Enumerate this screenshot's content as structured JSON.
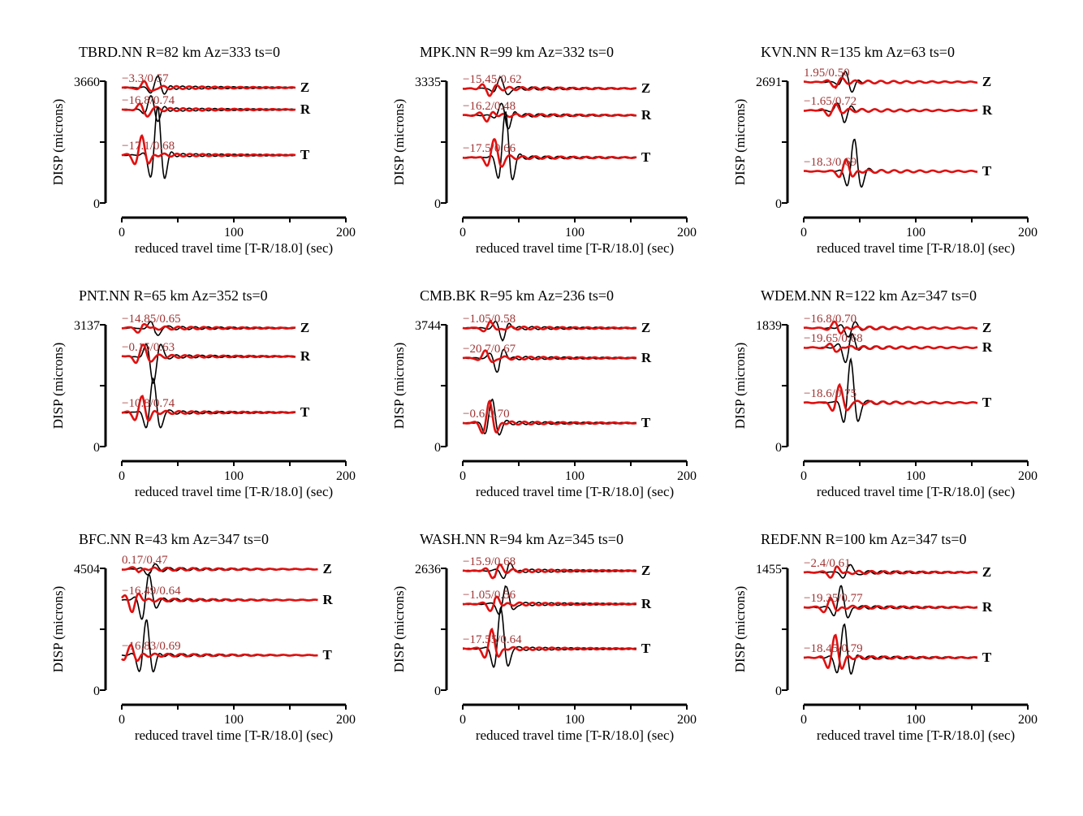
{
  "chart_data": {
    "type": "line",
    "layout": "3x3 grid of waveform panels",
    "xlabel": "reduced travel time [T-R/18.0] (sec)",
    "ylabel": "DISP (microns)",
    "xlim": [
      0,
      200
    ],
    "xticks": [
      "0",
      "100",
      "200"
    ],
    "series_legend": {
      "observed": "black",
      "synthetic": "red"
    },
    "colors": {
      "observed": "#000000",
      "synthetic": "#e01010",
      "fit_label": "#a03535"
    },
    "panels": [
      {
        "title": "TBRD.NN R=82 km Az=333 ts=0",
        "ymax": "3660",
        "ymin": "0",
        "tend": 155,
        "traces": [
          {
            "comp": "Z",
            "fit": "−3.3/0.57",
            "offset": 0.947,
            "amp_obs": 0.09,
            "amp_syn": 0.06,
            "t_obs": 32,
            "t_syn": 22
          },
          {
            "comp": "R",
            "fit": "−16.8/0.74",
            "offset": 0.767,
            "amp_obs": 0.12,
            "amp_syn": 0.07,
            "t_obs": 28,
            "t_syn": 20
          },
          {
            "comp": "T",
            "fit": "−17.1/0.68",
            "offset": 0.393,
            "amp_obs": 0.39,
            "amp_syn": 0.16,
            "t_obs": 32,
            "t_syn": 18
          }
        ]
      },
      {
        "title": "MPK.NN R=99 km Az=332 ts=0",
        "ymax": "3335",
        "ymin": "0",
        "tend": 155,
        "traces": [
          {
            "comp": "Z",
            "fit": "−15.45/0.62",
            "offset": 0.94,
            "amp_obs": 0.1,
            "amp_syn": 0.05,
            "t_obs": 35,
            "t_syn": 22
          },
          {
            "comp": "R",
            "fit": "−16.2/0.48",
            "offset": 0.72,
            "amp_obs": 0.12,
            "amp_syn": 0.05,
            "t_obs": 38,
            "t_syn": 22
          },
          {
            "comp": "T",
            "fit": "−17.5/0.66",
            "offset": 0.373,
            "amp_obs": 0.37,
            "amp_syn": 0.15,
            "t_obs": 38,
            "t_syn": 28
          }
        ]
      },
      {
        "title": "KVN.NN R=135 km Az=63 ts=0",
        "ymax": "2691",
        "ymin": "0",
        "tend": 155,
        "traces": [
          {
            "comp": "Z",
            "fit": "1.95/0.50",
            "offset": 0.993,
            "amp_obs": 0.1,
            "amp_syn": 0.04,
            "t_obs": 40,
            "t_syn": 28
          },
          {
            "comp": "R",
            "fit": "−1.65/0.72",
            "offset": 0.76,
            "amp_obs": 0.09,
            "amp_syn": 0.05,
            "t_obs": 35,
            "t_syn": 25
          },
          {
            "comp": "T",
            "fit": "−18.3/0.69",
            "offset": 0.26,
            "amp_obs": 0.26,
            "amp_syn": 0.1,
            "t_obs": 45,
            "t_syn": 38
          }
        ]
      },
      {
        "title": "PNT.NN R=65 km Az=352 ts=0",
        "ymax": "3137",
        "ymin": "0",
        "tend": 155,
        "traces": [
          {
            "comp": "Z",
            "fit": "−14.85/0.65",
            "offset": 0.973,
            "amp_obs": 0.08,
            "amp_syn": 0.05,
            "t_obs": 30,
            "t_syn": 18
          },
          {
            "comp": "R",
            "fit": "−0.15/0.63",
            "offset": 0.74,
            "amp_obs": 0.22,
            "amp_syn": 0.1,
            "t_obs": 28,
            "t_syn": 18
          },
          {
            "comp": "T",
            "fit": "−10.8/0.74",
            "offset": 0.28,
            "amp_obs": 0.28,
            "amp_syn": 0.13,
            "t_obs": 28,
            "t_syn": 18
          }
        ]
      },
      {
        "title": "CMB.BK R=95 km Az=236 ts=0",
        "ymax": "3744",
        "ymin": "0",
        "tend": 155,
        "traces": [
          {
            "comp": "Z",
            "fit": "−1.05/0.58",
            "offset": 0.973,
            "amp_obs": 0.1,
            "amp_syn": 0.06,
            "t_obs": 35,
            "t_syn": 25
          },
          {
            "comp": "R",
            "fit": "−20.7/0.67",
            "offset": 0.727,
            "amp_obs": 0.12,
            "amp_syn": 0.07,
            "t_obs": 32,
            "t_syn": 22
          },
          {
            "comp": "T",
            "fit": "−0.6/0.70",
            "offset": 0.193,
            "amp_obs": 0.19,
            "amp_syn": 0.18,
            "t_obs": 26,
            "t_syn": 24
          }
        ]
      },
      {
        "title": "WDEM.NN R=122 km Az=347 ts=0",
        "ymax": "1839",
        "ymin": "0",
        "tend": 155,
        "traces": [
          {
            "comp": "Z",
            "fit": "−16.8/0.70",
            "offset": 0.973,
            "amp_obs": 0.07,
            "amp_syn": 0.06,
            "t_obs": 40,
            "t_syn": 30
          },
          {
            "comp": "R",
            "fit": "−19.65/0.68",
            "offset": 0.813,
            "amp_obs": 0.14,
            "amp_syn": 0.05,
            "t_obs": 40,
            "t_syn": 28
          },
          {
            "comp": "T",
            "fit": "−18.6/0.75",
            "offset": 0.36,
            "amp_obs": 0.36,
            "amp_syn": 0.15,
            "t_obs": 42,
            "t_syn": 32
          }
        ]
      },
      {
        "title": "BFC.NN R=43 km Az=347 ts=0",
        "ymax": "4504",
        "ymin": "0",
        "tend": 175,
        "traces": [
          {
            "comp": "Z",
            "fit": "0.17/0.47",
            "offset": 0.993,
            "amp_obs": 0.05,
            "amp_syn": 0.03,
            "t_obs": 25,
            "t_syn": 15
          },
          {
            "comp": "R",
            "fit": "−16.49/0.64",
            "offset": 0.74,
            "amp_obs": 0.22,
            "amp_syn": 0.1,
            "t_obs": 22,
            "t_syn": 10
          },
          {
            "comp": "T",
            "fit": "−16.83/0.69",
            "offset": 0.287,
            "amp_obs": 0.287,
            "amp_syn": 0.08,
            "t_obs": 22,
            "t_syn": 8
          }
        ]
      },
      {
        "title": "WASH.NN R=94 km Az=345 ts=0",
        "ymax": "2636",
        "ymin": "0",
        "tend": 155,
        "traces": [
          {
            "comp": "Z",
            "fit": "−15.9/0.68",
            "offset": 0.98,
            "amp_obs": 0.08,
            "amp_syn": 0.06,
            "t_obs": 40,
            "t_syn": 28
          },
          {
            "comp": "R",
            "fit": "−1.05/0.56",
            "offset": 0.707,
            "amp_obs": 0.16,
            "amp_syn": 0.07,
            "t_obs": 38,
            "t_syn": 28
          },
          {
            "comp": "T",
            "fit": "−17.55/0.64",
            "offset": 0.34,
            "amp_obs": 0.34,
            "amp_syn": 0.16,
            "t_obs": 34,
            "t_syn": 26
          }
        ]
      },
      {
        "title": "REDF.NN R=100 km Az=347 ts=0",
        "ymax": "1455",
        "ymin": "0",
        "tend": 155,
        "traces": [
          {
            "comp": "Z",
            "fit": "−2.4/0.61",
            "offset": 0.967,
            "amp_obs": 0.08,
            "amp_syn": 0.06,
            "t_obs": 40,
            "t_syn": 28
          },
          {
            "comp": "R",
            "fit": "−19.35/0.77",
            "offset": 0.68,
            "amp_obs": 0.18,
            "amp_syn": 0.08,
            "t_obs": 34,
            "t_syn": 24
          },
          {
            "comp": "T",
            "fit": "−18.45/0.79",
            "offset": 0.267,
            "amp_obs": 0.267,
            "amp_syn": 0.18,
            "t_obs": 36,
            "t_syn": 28
          }
        ]
      }
    ]
  }
}
